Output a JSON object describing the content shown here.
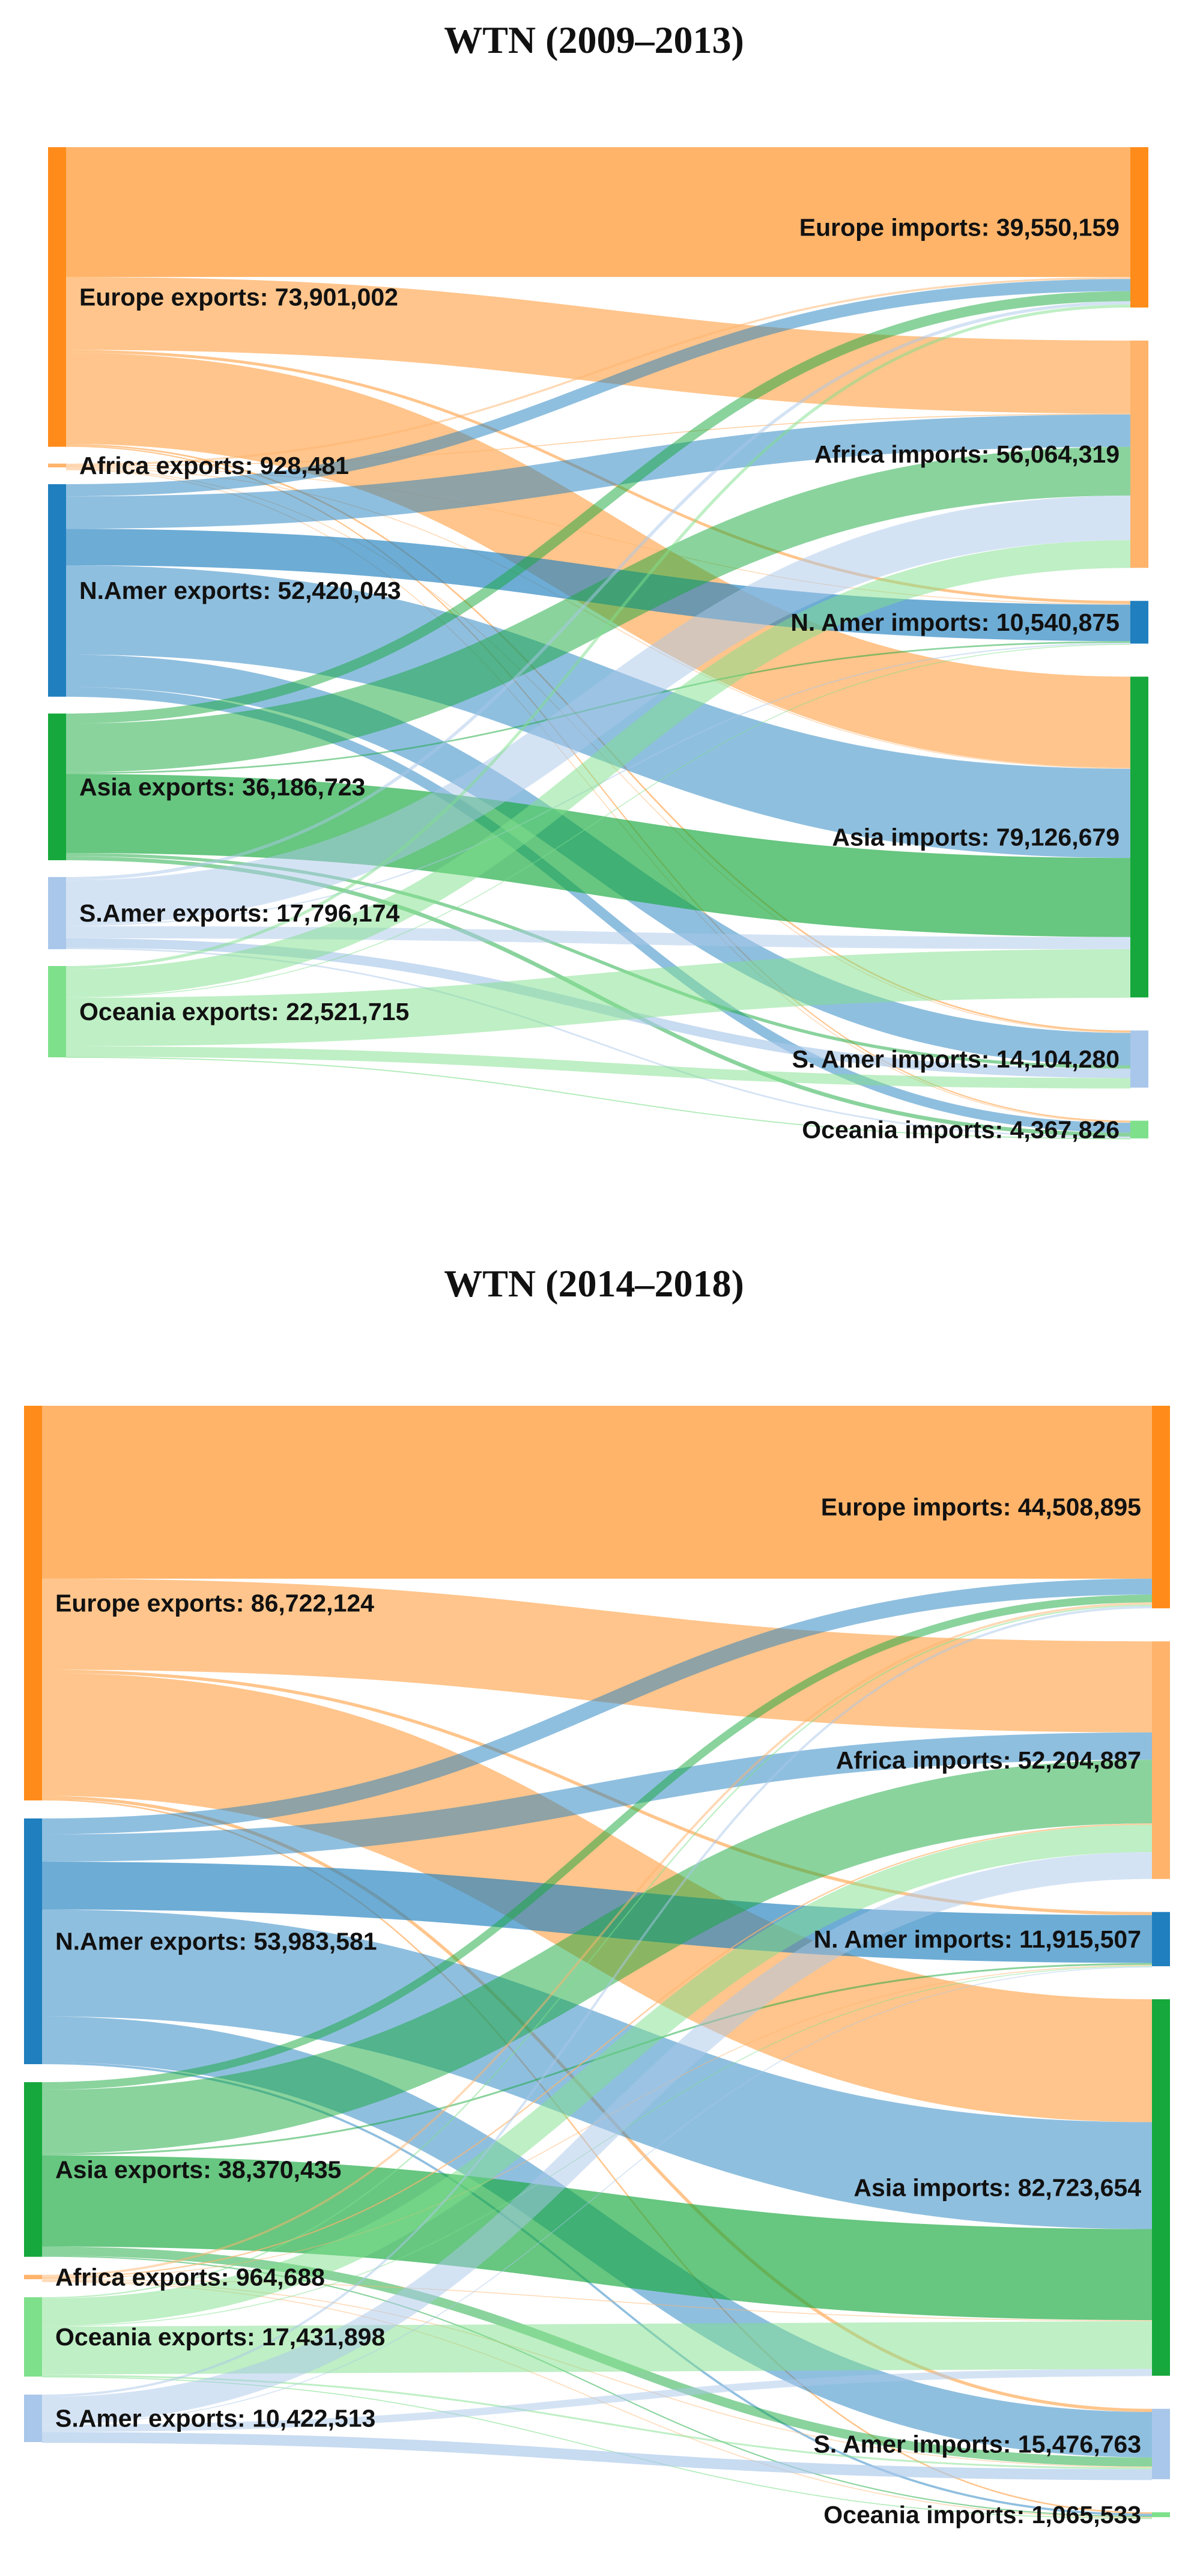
{
  "chart_data": [
    {
      "type": "sankey",
      "title": "WTN (2009–2013)",
      "colors": {
        "Europe": "#ff8c1a",
        "Africa": "#ffb36b",
        "N.Amer": "#1f7fbf",
        "Asia": "#16a83c",
        "S.Amer": "#a9c7ea",
        "Oceania": "#7fe08c"
      },
      "exports": [
        {
          "region": "Europe",
          "label": "Europe exports: 73,901,002",
          "value": 73901002
        },
        {
          "region": "Africa",
          "label": "Africa exports: 928,481",
          "value": 928481
        },
        {
          "region": "N.Amer",
          "label": "N.Amer exports: 52,420,043",
          "value": 52420043
        },
        {
          "region": "Asia",
          "label": "Asia exports: 36,186,723",
          "value": 36186723
        },
        {
          "region": "S.Amer",
          "label": "S.Amer exports: 17,796,174",
          "value": 17796174
        },
        {
          "region": "Oceania",
          "label": "Oceania exports: 22,521,715",
          "value": 22521715
        }
      ],
      "imports": [
        {
          "region": "Europe",
          "label": "Europe imports: 39,550,159",
          "value": 39550159
        },
        {
          "region": "Africa",
          "label": "Africa imports: 56,064,319",
          "value": 56064319
        },
        {
          "region": "N.Amer",
          "label": "N. Amer imports: 10,540,875",
          "value": 10540875
        },
        {
          "region": "Asia",
          "label": "Asia imports: 79,126,679",
          "value": 79126679
        },
        {
          "region": "S.Amer",
          "label": "S. Amer imports: 14,104,280",
          "value": 14104280
        },
        {
          "region": "Oceania",
          "label": "Oceania imports: 4,367,826",
          "value": 4367826
        }
      ],
      "flows": [
        {
          "from": "Europe",
          "to": "Europe",
          "value": 32000000
        },
        {
          "from": "Europe",
          "to": "Africa",
          "value": 18000000
        },
        {
          "from": "Europe",
          "to": "N.Amer",
          "value": 700000
        },
        {
          "from": "Europe",
          "to": "Asia",
          "value": 22500000
        },
        {
          "from": "Europe",
          "to": "S.Amer",
          "value": 400000
        },
        {
          "from": "Europe",
          "to": "Oceania",
          "value": 301002
        },
        {
          "from": "Africa",
          "to": "Europe",
          "value": 500000
        },
        {
          "from": "Africa",
          "to": "Africa",
          "value": 200000
        },
        {
          "from": "Africa",
          "to": "N.Amer",
          "value": 50000
        },
        {
          "from": "Africa",
          "to": "Asia",
          "value": 150000
        },
        {
          "from": "Africa",
          "to": "S.Amer",
          "value": 20000
        },
        {
          "from": "Africa",
          "to": "Oceania",
          "value": 8481
        },
        {
          "from": "N.Amer",
          "to": "Europe",
          "value": 3000000
        },
        {
          "from": "N.Amer",
          "to": "Africa",
          "value": 8000000
        },
        {
          "from": "N.Amer",
          "to": "N.Amer",
          "value": 9000000
        },
        {
          "from": "N.Amer",
          "to": "Asia",
          "value": 22000000
        },
        {
          "from": "N.Amer",
          "to": "S.Amer",
          "value": 8000000
        },
        {
          "from": "N.Amer",
          "to": "Oceania",
          "value": 2420043
        },
        {
          "from": "Asia",
          "to": "Europe",
          "value": 2500000
        },
        {
          "from": "Asia",
          "to": "Africa",
          "value": 12000000
        },
        {
          "from": "Asia",
          "to": "N.Amer",
          "value": 400000
        },
        {
          "from": "Asia",
          "to": "Asia",
          "value": 19500000
        },
        {
          "from": "Asia",
          "to": "S.Amer",
          "value": 800000
        },
        {
          "from": "Asia",
          "to": "Oceania",
          "value": 986723
        },
        {
          "from": "S.Amer",
          "to": "Europe",
          "value": 800000
        },
        {
          "from": "S.Amer",
          "to": "Africa",
          "value": 11000000
        },
        {
          "from": "S.Amer",
          "to": "N.Amer",
          "value": 300000
        },
        {
          "from": "S.Amer",
          "to": "Asia",
          "value": 3000000
        },
        {
          "from": "S.Amer",
          "to": "S.Amer",
          "value": 2300000
        },
        {
          "from": "S.Amer",
          "to": "Oceania",
          "value": 396174
        },
        {
          "from": "Oceania",
          "to": "Europe",
          "value": 750159
        },
        {
          "from": "Oceania",
          "to": "Africa",
          "value": 6864319
        },
        {
          "from": "Oceania",
          "to": "N.Amer",
          "value": 90875
        },
        {
          "from": "Oceania",
          "to": "Asia",
          "value": 11976679
        },
        {
          "from": "Oceania",
          "to": "S.Amer",
          "value": 2584280
        },
        {
          "from": "Oceania",
          "to": "Oceania",
          "value": 255403
        }
      ]
    },
    {
      "type": "sankey",
      "title": "WTN (2014–2018)",
      "colors": {
        "Europe": "#ff8c1a",
        "Africa": "#ffb36b",
        "N.Amer": "#1f7fbf",
        "Asia": "#16a83c",
        "S.Amer": "#a9c7ea",
        "Oceania": "#7fe08c"
      },
      "exports": [
        {
          "region": "Europe",
          "label": "Europe exports: 86,722,124",
          "value": 86722124
        },
        {
          "region": "N.Amer",
          "label": "N.Amer exports: 53,983,581",
          "value": 53983581
        },
        {
          "region": "Asia",
          "label": "Asia exports: 38,370,435",
          "value": 38370435
        },
        {
          "region": "Africa",
          "label": "Africa exports: 964,688",
          "value": 964688
        },
        {
          "region": "Oceania",
          "label": "Oceania exports: 17,431,898",
          "value": 17431898
        },
        {
          "region": "S.Amer",
          "label": "S.Amer exports: 10,422,513",
          "value": 10422513
        }
      ],
      "imports": [
        {
          "region": "Europe",
          "label": "Europe imports: 44,508,895",
          "value": 44508895
        },
        {
          "region": "Africa",
          "label": "Africa imports: 52,204,887",
          "value": 52204887
        },
        {
          "region": "N.Amer",
          "label": "N. Amer imports: 11,915,507",
          "value": 11915507
        },
        {
          "region": "Asia",
          "label": "Asia imports: 82,723,654",
          "value": 82723654
        },
        {
          "region": "S.Amer",
          "label": "S. Amer imports: 15,476,763",
          "value": 15476763
        },
        {
          "region": "Oceania",
          "label": "Oceania imports: 1,065,533",
          "value": 1065533
        }
      ],
      "flows": [
        {
          "from": "Europe",
          "to": "Europe",
          "value": 38000000
        },
        {
          "from": "Europe",
          "to": "Africa",
          "value": 20000000
        },
        {
          "from": "Europe",
          "to": "N.Amer",
          "value": 700000
        },
        {
          "from": "Europe",
          "to": "Asia",
          "value": 27000000
        },
        {
          "from": "Europe",
          "to": "S.Amer",
          "value": 700000
        },
        {
          "from": "Europe",
          "to": "Oceania",
          "value": 322124
        },
        {
          "from": "N.Amer",
          "to": "Europe",
          "value": 3500000
        },
        {
          "from": "N.Amer",
          "to": "Africa",
          "value": 6000000
        },
        {
          "from": "N.Amer",
          "to": "N.Amer",
          "value": 10500000
        },
        {
          "from": "N.Amer",
          "to": "Asia",
          "value": 23500000
        },
        {
          "from": "N.Amer",
          "to": "S.Amer",
          "value": 10000000
        },
        {
          "from": "N.Amer",
          "to": "Oceania",
          "value": 483581
        },
        {
          "from": "Asia",
          "to": "Europe",
          "value": 1700000
        },
        {
          "from": "Asia",
          "to": "Africa",
          "value": 14000000
        },
        {
          "from": "Asia",
          "to": "N.Amer",
          "value": 400000
        },
        {
          "from": "Asia",
          "to": "Asia",
          "value": 20000000
        },
        {
          "from": "Asia",
          "to": "S.Amer",
          "value": 2000000
        },
        {
          "from": "Asia",
          "to": "Oceania",
          "value": 270435
        },
        {
          "from": "Africa",
          "to": "Europe",
          "value": 500000
        },
        {
          "from": "Africa",
          "to": "Africa",
          "value": 300000
        },
        {
          "from": "Africa",
          "to": "N.Amer",
          "value": 50000
        },
        {
          "from": "Africa",
          "to": "Asia",
          "value": 100000
        },
        {
          "from": "Africa",
          "to": "S.Amer",
          "value": 10000
        },
        {
          "from": "Africa",
          "to": "Oceania",
          "value": 4688
        },
        {
          "from": "Oceania",
          "to": "Europe",
          "value": 300000
        },
        {
          "from": "Oceania",
          "to": "Africa",
          "value": 6000000
        },
        {
          "from": "Oceania",
          "to": "N.Amer",
          "value": 200000
        },
        {
          "from": "Oceania",
          "to": "Asia",
          "value": 10500000
        },
        {
          "from": "Oceania",
          "to": "S.Amer",
          "value": 400000
        },
        {
          "from": "Oceania",
          "to": "Oceania",
          "value": 31898
        },
        {
          "from": "S.Amer",
          "to": "Europe",
          "value": 508895
        },
        {
          "from": "S.Amer",
          "to": "Africa",
          "value": 5904887
        },
        {
          "from": "S.Amer",
          "to": "N.Amer",
          "value": 65507
        },
        {
          "from": "S.Amer",
          "to": "Asia",
          "value": 1623654
        },
        {
          "from": "S.Amer",
          "to": "S.Amer",
          "value": 2366763
        },
        {
          "from": "S.Amer",
          "to": "Oceania",
          "value": -47193
        }
      ]
    }
  ]
}
